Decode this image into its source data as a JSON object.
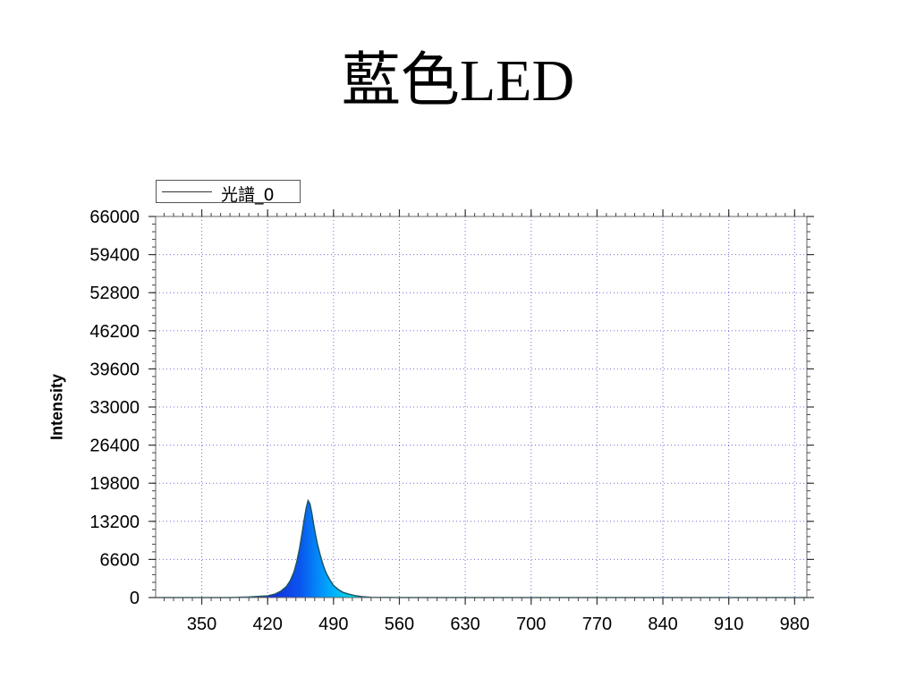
{
  "slide": {
    "title": "藍色LED"
  },
  "chart_data": {
    "type": "area",
    "title": "",
    "xlabel": "",
    "ylabel": "Intensity",
    "legend": {
      "entries": [
        "光譜_0"
      ],
      "placement": "top-left"
    },
    "xlim": [
      301,
      993
    ],
    "ylim": [
      0,
      66000
    ],
    "xticks": [
      350,
      420,
      490,
      560,
      630,
      700,
      770,
      840,
      910,
      980
    ],
    "yticks": [
      0,
      6600,
      13200,
      19800,
      26400,
      33000,
      39600,
      46200,
      52800,
      59400,
      66000
    ],
    "grid": true,
    "series": [
      {
        "name": "光譜_0",
        "x": [
          301,
          380,
          400,
          420,
          428,
          434,
          440,
          444,
          448,
          451,
          454,
          457,
          459,
          461,
          463,
          465,
          467,
          469,
          471,
          473,
          476,
          479,
          482,
          486,
          490,
          495,
          500,
          506,
          512,
          520,
          530,
          560,
          600,
          700,
          800,
          993
        ],
        "y": [
          0,
          0,
          100,
          300,
          600,
          1100,
          1900,
          2900,
          4400,
          6200,
          8600,
          11500,
          13600,
          15500,
          16800,
          16200,
          14600,
          12600,
          10800,
          9200,
          7300,
          5600,
          4300,
          3100,
          2100,
          1400,
          900,
          600,
          350,
          150,
          50,
          0,
          0,
          0,
          0,
          0
        ]
      }
    ]
  }
}
